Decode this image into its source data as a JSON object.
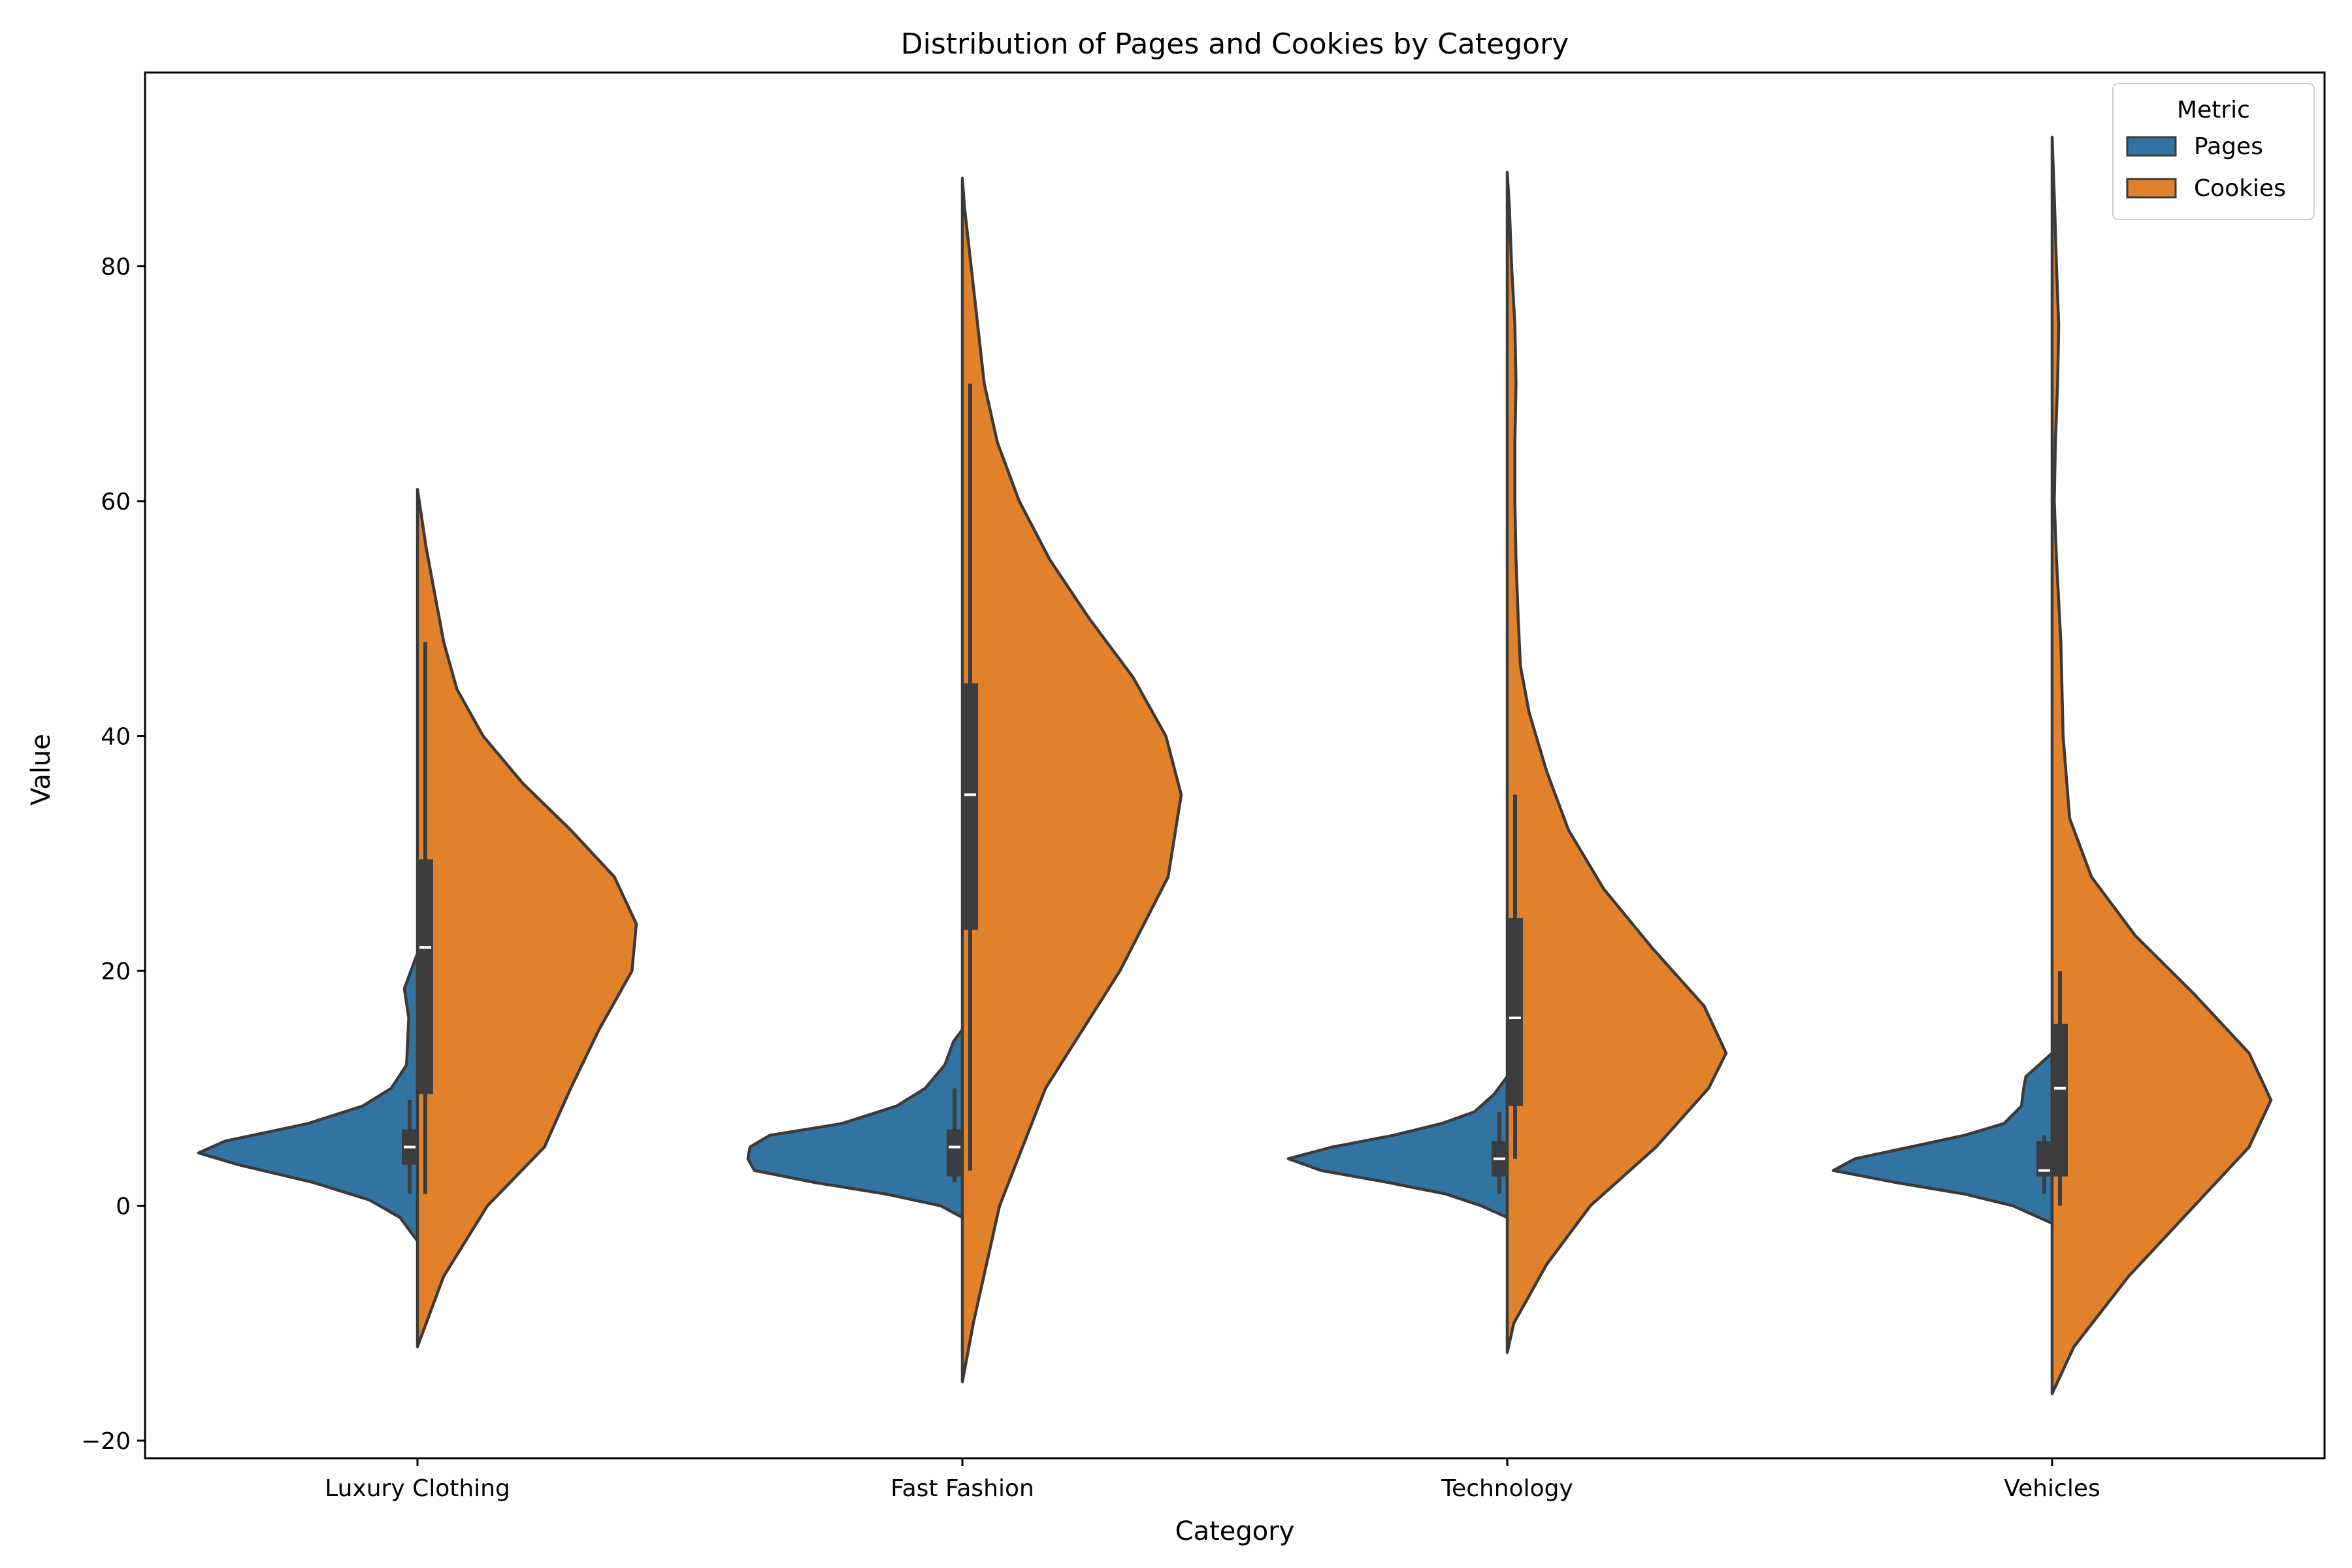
{
  "chart_data": {
    "type": "violin",
    "title": "Distribution of Pages and Cookies by Category",
    "xlabel": "Category",
    "ylabel": "Value",
    "ylim": [
      -21.5,
      96.5
    ],
    "yticks": [
      -20,
      0,
      20,
      40,
      60,
      80
    ],
    "categories": [
      "Luxury Clothing",
      "Fast Fashion",
      "Technology",
      "Vehicles"
    ],
    "legend": {
      "title": "Metric",
      "position": "top-right"
    },
    "colors": {
      "Pages": "#3274a1",
      "Cookies": "#e1812c",
      "outline": "#3a3a3a",
      "box": "#3d3d3d",
      "median": "#ffffff"
    },
    "series": [
      {
        "name": "Pages",
        "side": "left",
        "violins": [
          {
            "profile": [
              [
                -3,
                0
              ],
              [
                -1,
                0.08
              ],
              [
                0.5,
                0.22
              ],
              [
                2,
                0.48
              ],
              [
                3.5,
                0.82
              ],
              [
                4.5,
                1.0
              ],
              [
                5.5,
                0.88
              ],
              [
                7,
                0.5
              ],
              [
                8.5,
                0.25
              ],
              [
                10,
                0.12
              ],
              [
                12,
                0.05
              ],
              [
                16,
                0.04
              ],
              [
                18.5,
                0.06
              ],
              [
                20,
                0.03
              ],
              [
                21.5,
                0
              ]
            ],
            "whisker": [
              1,
              9
            ],
            "q1": 3.5,
            "q3": 6.5,
            "median": 5
          },
          {
            "profile": [
              [
                -1,
                0
              ],
              [
                0,
                0.1
              ],
              [
                1,
                0.35
              ],
              [
                2,
                0.68
              ],
              [
                3,
                0.95
              ],
              [
                4,
                0.98
              ],
              [
                5,
                0.97
              ],
              [
                6,
                0.88
              ],
              [
                7,
                0.55
              ],
              [
                8.5,
                0.3
              ],
              [
                10,
                0.17
              ],
              [
                12,
                0.08
              ],
              [
                14,
                0.04
              ],
              [
                15,
                0
              ]
            ],
            "whisker": [
              2,
              10
            ],
            "q1": 2.5,
            "q3": 6.5,
            "median": 5
          },
          {
            "profile": [
              [
                -1,
                0
              ],
              [
                0,
                0.12
              ],
              [
                1,
                0.28
              ],
              [
                2,
                0.55
              ],
              [
                3,
                0.85
              ],
              [
                4,
                1.0
              ],
              [
                5,
                0.8
              ],
              [
                6,
                0.52
              ],
              [
                7,
                0.3
              ],
              [
                8,
                0.15
              ],
              [
                9.5,
                0.06
              ],
              [
                11,
                0
              ]
            ],
            "whisker": [
              1,
              8
            ],
            "q1": 2.5,
            "q3": 5.5,
            "median": 4
          },
          {
            "profile": [
              [
                -1.5,
                0
              ],
              [
                0,
                0.18
              ],
              [
                1,
                0.4
              ],
              [
                2,
                0.72
              ],
              [
                3,
                1.0
              ],
              [
                4,
                0.9
              ],
              [
                5,
                0.65
              ],
              [
                6,
                0.4
              ],
              [
                7,
                0.22
              ],
              [
                8.5,
                0.14
              ],
              [
                10,
                0.13
              ],
              [
                11,
                0.12
              ],
              [
                12,
                0.06
              ],
              [
                13,
                0
              ]
            ],
            "whisker": [
              1,
              6
            ],
            "q1": 2.5,
            "q3": 5.5,
            "median": 3
          }
        ]
      },
      {
        "name": "Cookies",
        "side": "right",
        "violins": [
          {
            "profile": [
              [
                -12,
                0
              ],
              [
                -6,
                0.12
              ],
              [
                0,
                0.32
              ],
              [
                5,
                0.58
              ],
              [
                10,
                0.7
              ],
              [
                15,
                0.83
              ],
              [
                20,
                0.98
              ],
              [
                24,
                1.0
              ],
              [
                28,
                0.9
              ],
              [
                32,
                0.7
              ],
              [
                36,
                0.48
              ],
              [
                40,
                0.3
              ],
              [
                44,
                0.18
              ],
              [
                48,
                0.12
              ],
              [
                52,
                0.08
              ],
              [
                56,
                0.04
              ],
              [
                61,
                0
              ]
            ],
            "whisker": [
              1,
              48
            ],
            "q1": 9.5,
            "q3": 29.5,
            "median": 22
          },
          {
            "profile": [
              [
                -15,
                0
              ],
              [
                -10,
                0.05
              ],
              [
                0,
                0.17
              ],
              [
                10,
                0.38
              ],
              [
                20,
                0.72
              ],
              [
                28,
                0.94
              ],
              [
                35,
                1.0
              ],
              [
                40,
                0.93
              ],
              [
                45,
                0.78
              ],
              [
                50,
                0.58
              ],
              [
                55,
                0.4
              ],
              [
                60,
                0.26
              ],
              [
                65,
                0.16
              ],
              [
                70,
                0.1
              ],
              [
                75,
                0.07
              ],
              [
                80,
                0.04
              ],
              [
                85,
                0.01
              ],
              [
                87.5,
                0
              ]
            ],
            "whisker": [
              3,
              70
            ],
            "q1": 23.5,
            "q3": 44.5,
            "median": 35
          },
          {
            "profile": [
              [
                -12.5,
                0
              ],
              [
                -10,
                0.03
              ],
              [
                -5,
                0.18
              ],
              [
                0,
                0.38
              ],
              [
                5,
                0.68
              ],
              [
                10,
                0.92
              ],
              [
                13,
                1.0
              ],
              [
                17,
                0.9
              ],
              [
                22,
                0.66
              ],
              [
                27,
                0.44
              ],
              [
                32,
                0.28
              ],
              [
                37,
                0.18
              ],
              [
                42,
                0.1
              ],
              [
                46,
                0.06
              ],
              [
                50,
                0.05
              ],
              [
                55,
                0.04
              ],
              [
                60,
                0.035
              ],
              [
                65,
                0.035
              ],
              [
                70,
                0.04
              ],
              [
                75,
                0.035
              ],
              [
                80,
                0.02
              ],
              [
                85,
                0.01
              ],
              [
                88,
                0
              ]
            ],
            "whisker": [
              4,
              35
            ],
            "q1": 8.5,
            "q3": 24.5,
            "median": 16
          },
          {
            "profile": [
              [
                -16,
                0
              ],
              [
                -12,
                0.1
              ],
              [
                -6,
                0.35
              ],
              [
                0,
                0.65
              ],
              [
                5,
                0.9
              ],
              [
                9,
                1.0
              ],
              [
                13,
                0.9
              ],
              [
                18,
                0.65
              ],
              [
                23,
                0.38
              ],
              [
                28,
                0.18
              ],
              [
                33,
                0.08
              ],
              [
                40,
                0.05
              ],
              [
                48,
                0.04
              ],
              [
                55,
                0.02
              ],
              [
                60,
                0.01
              ],
              [
                65,
                0.015
              ],
              [
                70,
                0.025
              ],
              [
                75,
                0.03
              ],
              [
                80,
                0.02
              ],
              [
                86,
                0.01
              ],
              [
                91,
                0
              ]
            ],
            "whisker": [
              0,
              20
            ],
            "q1": 2.5,
            "q3": 15.5,
            "median": 10
          }
        ]
      }
    ]
  }
}
